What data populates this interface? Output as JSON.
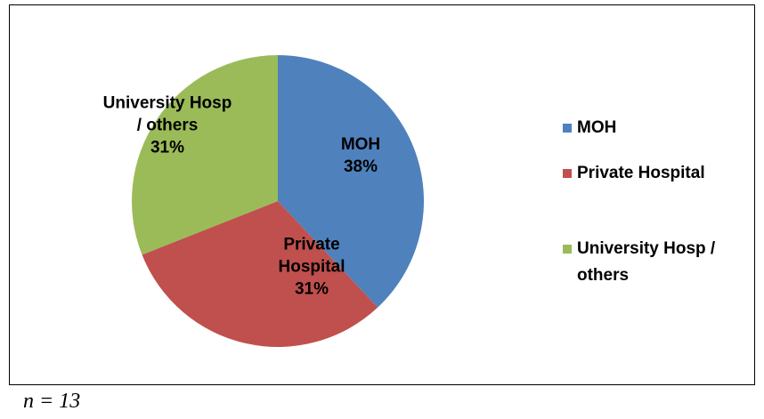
{
  "chart_data": {
    "type": "pie",
    "categories": [
      "MOH",
      "Private Hospital",
      "University Hosp / others"
    ],
    "values": [
      38,
      31,
      31
    ],
    "value_labels": [
      "38%",
      "31%",
      "31%"
    ],
    "colors": [
      "#4f81bd",
      "#c0504d",
      "#9bbb59"
    ],
    "legend": "right",
    "note": "n = 13"
  }
}
